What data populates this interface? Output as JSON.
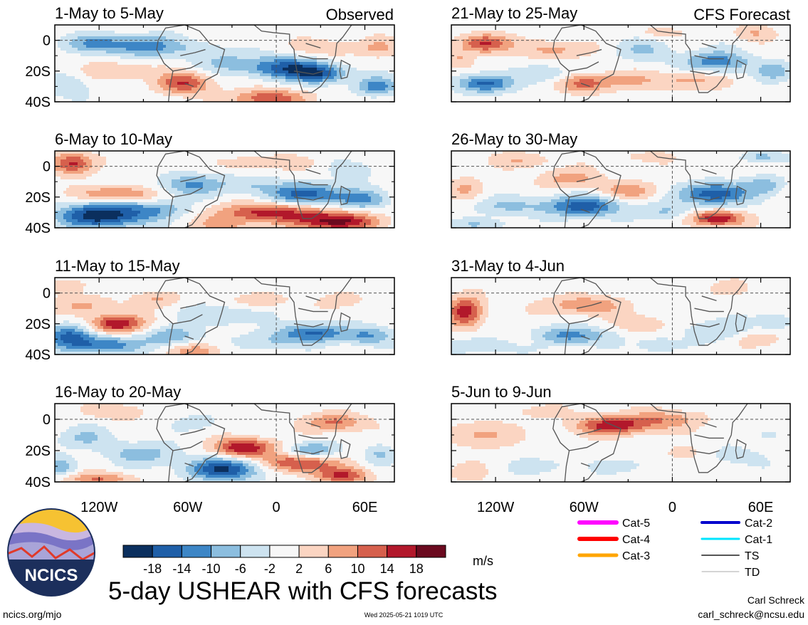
{
  "colors": {
    "levels": [
      "#0b2f5e",
      "#1f5fa8",
      "#3d86c6",
      "#8cbedf",
      "#cde3f0",
      "#f7f7f7",
      "#fbd5c2",
      "#f1a27f",
      "#d6604d",
      "#b2182b",
      "#6b0a1f"
    ],
    "continent": "#555555",
    "dashed": "#555555"
  },
  "panels_left_label": "Observed",
  "panels_right_label": "CFS Forecast",
  "lat_ticks": [
    "0",
    "20S",
    "40S"
  ],
  "lon_ticks": [
    "120W",
    "60W",
    "0",
    "60E"
  ],
  "colorbar": {
    "labels": [
      "-18",
      "-14",
      "-10",
      "-6",
      "-2",
      "2",
      "6",
      "10",
      "14",
      "18"
    ],
    "units": "m/s"
  },
  "legend": [
    {
      "label": "Cat-5",
      "color": "#ff00ff",
      "width": 6
    },
    {
      "label": "Cat-4",
      "color": "#ff0000",
      "width": 6
    },
    {
      "label": "Cat-3",
      "color": "#ffa500",
      "width": 5
    },
    {
      "label": "Cat-2",
      "color": "#0000cd",
      "width": 4
    },
    {
      "label": "Cat-1",
      "color": "#00e5ff",
      "width": 3
    },
    {
      "label": "TS",
      "color": "#555555",
      "width": 2
    },
    {
      "label": "TD",
      "color": "#aaaaaa",
      "width": 1
    }
  ],
  "title": "5-day USHEAR with CFS forecasts",
  "logo_text": "NCICS",
  "footer": {
    "left": "ncics.org/mjo",
    "center": "Wed 2025-05-21 1019 UTC",
    "author": "Carl Schreck",
    "email": "carl_schreck@ncsu.edu"
  },
  "chart_data": [
    {
      "type": "heatmap",
      "title": "1-May to 5-May",
      "ylim": [
        -40,
        10
      ],
      "xlim": [
        -150,
        80
      ],
      "blobs": [
        [
          -122,
          -2,
          -10,
          24,
          6
        ],
        [
          -88,
          -4,
          -12,
          22,
          7
        ],
        [
          -35,
          -14,
          -6,
          24,
          7
        ],
        [
          6,
          -18,
          -16,
          26,
          7
        ],
        [
          30,
          -22,
          -14,
          18,
          6
        ],
        [
          68,
          -30,
          -12,
          14,
          6
        ],
        [
          -62,
          -28,
          14,
          18,
          7
        ],
        [
          -105,
          -20,
          6,
          24,
          6
        ],
        [
          -140,
          -30,
          -6,
          14,
          8
        ],
        [
          -5,
          -38,
          14,
          24,
          6
        ],
        [
          35,
          -5,
          6,
          20,
          6
        ],
        [
          70,
          -5,
          6,
          14,
          6
        ],
        [
          -50,
          -5,
          -4,
          16,
          5
        ]
      ]
    },
    {
      "type": "heatmap",
      "title": "6-May to 10-May",
      "ylim": [
        -40,
        10
      ],
      "xlim": [
        -150,
        80
      ],
      "blobs": [
        [
          -138,
          2,
          16,
          14,
          7
        ],
        [
          -108,
          -18,
          12,
          24,
          5
        ],
        [
          -118,
          -32,
          -22,
          28,
          8
        ],
        [
          -58,
          -12,
          -10,
          22,
          7
        ],
        [
          -80,
          -28,
          -8,
          22,
          6
        ],
        [
          -20,
          -12,
          -6,
          18,
          6
        ],
        [
          22,
          -18,
          -16,
          26,
          7
        ],
        [
          58,
          -22,
          -10,
          16,
          6
        ],
        [
          -5,
          -30,
          16,
          34,
          6
        ],
        [
          40,
          -36,
          20,
          26,
          6
        ],
        [
          52,
          -2,
          -6,
          14,
          6
        ],
        [
          -20,
          2,
          6,
          18,
          5
        ],
        [
          18,
          2,
          4,
          14,
          5
        ],
        [
          -35,
          -38,
          8,
          18,
          5
        ]
      ]
    },
    {
      "type": "heatmap",
      "title": "11-May to 15-May",
      "ylim": [
        -40,
        10
      ],
      "xlim": [
        -150,
        80
      ],
      "blobs": [
        [
          -108,
          -20,
          18,
          18,
          6
        ],
        [
          -128,
          -8,
          7,
          20,
          6
        ],
        [
          -140,
          -28,
          -14,
          16,
          8
        ],
        [
          -115,
          -34,
          -14,
          22,
          6
        ],
        [
          -70,
          -28,
          -10,
          18,
          6
        ],
        [
          -35,
          -14,
          -6,
          24,
          7
        ],
        [
          -5,
          -32,
          -6,
          18,
          6
        ],
        [
          25,
          -26,
          -14,
          24,
          6
        ],
        [
          62,
          -28,
          -10,
          16,
          6
        ],
        [
          -80,
          -4,
          6,
          16,
          5
        ],
        [
          -55,
          -38,
          8,
          18,
          5
        ],
        [
          -10,
          -5,
          6,
          18,
          5
        ],
        [
          45,
          -5,
          6,
          14,
          5
        ],
        [
          -145,
          5,
          6,
          14,
          5
        ]
      ]
    },
    {
      "type": "heatmap",
      "title": "16-May to 20-May",
      "ylim": [
        -40,
        10
      ],
      "xlim": [
        -150,
        80
      ],
      "blobs": [
        [
          -22,
          -18,
          18,
          20,
          6
        ],
        [
          15,
          -28,
          16,
          24,
          6
        ],
        [
          45,
          -36,
          14,
          18,
          5
        ],
        [
          -35,
          -32,
          -18,
          26,
          7
        ],
        [
          -90,
          -22,
          -8,
          24,
          7
        ],
        [
          -130,
          -12,
          -6,
          20,
          7
        ],
        [
          25,
          -20,
          -12,
          16,
          5
        ],
        [
          40,
          -2,
          12,
          18,
          6
        ],
        [
          -120,
          -38,
          10,
          24,
          4
        ],
        [
          -145,
          -30,
          -8,
          10,
          6
        ],
        [
          70,
          -22,
          -6,
          10,
          6
        ],
        [
          -50,
          -2,
          -4,
          16,
          6
        ],
        [
          -110,
          5,
          6,
          20,
          5
        ]
      ]
    },
    {
      "type": "heatmap",
      "title": "21-May to 25-May",
      "ylim": [
        -40,
        10
      ],
      "xlim": [
        -150,
        80
      ],
      "blobs": [
        [
          -128,
          -2,
          16,
          16,
          6
        ],
        [
          -80,
          -6,
          8,
          22,
          6
        ],
        [
          -128,
          -28,
          -16,
          18,
          6
        ],
        [
          -60,
          -28,
          12,
          16,
          6
        ],
        [
          -85,
          -22,
          -6,
          18,
          6
        ],
        [
          -20,
          -6,
          -6,
          20,
          7
        ],
        [
          30,
          -14,
          -12,
          24,
          7
        ],
        [
          70,
          -20,
          -8,
          12,
          6
        ],
        [
          10,
          -26,
          8,
          24,
          6
        ],
        [
          -35,
          -26,
          6,
          20,
          6
        ],
        [
          55,
          5,
          6,
          14,
          5
        ],
        [
          -10,
          5,
          4,
          16,
          4
        ],
        [
          -145,
          -12,
          6,
          10,
          6
        ]
      ]
    },
    {
      "type": "heatmap",
      "title": "26-May to 30-May",
      "ylim": [
        -40,
        10
      ],
      "xlim": [
        -150,
        80
      ],
      "blobs": [
        [
          -60,
          -26,
          -16,
          26,
          7
        ],
        [
          -110,
          -26,
          -6,
          26,
          6
        ],
        [
          28,
          -18,
          -18,
          22,
          7
        ],
        [
          62,
          -12,
          -8,
          14,
          6
        ],
        [
          30,
          -34,
          18,
          18,
          5
        ],
        [
          -30,
          -16,
          8,
          22,
          6
        ],
        [
          -70,
          -8,
          8,
          20,
          6
        ],
        [
          -140,
          -14,
          6,
          12,
          7
        ],
        [
          -130,
          -38,
          -6,
          20,
          4
        ],
        [
          -5,
          -30,
          -6,
          18,
          6
        ],
        [
          -20,
          6,
          4,
          18,
          4
        ],
        [
          60,
          6,
          -8,
          14,
          4
        ],
        [
          -100,
          4,
          6,
          20,
          5
        ]
      ]
    },
    {
      "type": "heatmap",
      "title": "31-May to 4-Jun",
      "ylim": [
        -40,
        10
      ],
      "xlim": [
        -150,
        80
      ],
      "blobs": [
        [
          -140,
          -12,
          16,
          12,
          10
        ],
        [
          -60,
          -8,
          10,
          26,
          6
        ],
        [
          -70,
          -28,
          -12,
          26,
          6
        ],
        [
          -125,
          -34,
          -6,
          22,
          6
        ],
        [
          -20,
          -20,
          6,
          18,
          6
        ],
        [
          30,
          -24,
          -6,
          22,
          7
        ],
        [
          70,
          -18,
          -6,
          12,
          6
        ],
        [
          60,
          -30,
          6,
          14,
          5
        ],
        [
          -10,
          -34,
          -6,
          14,
          5
        ],
        [
          35,
          3,
          4,
          14,
          5
        ],
        [
          -100,
          -30,
          4,
          16,
          5
        ]
      ]
    },
    {
      "type": "heatmap",
      "title": "5-Jun to 9-Jun",
      "ylim": [
        -40,
        10
      ],
      "xlim": [
        -150,
        80
      ],
      "blobs": [
        [
          -40,
          -4,
          16,
          26,
          6
        ],
        [
          -5,
          0,
          8,
          26,
          6
        ],
        [
          -130,
          -10,
          8,
          20,
          8
        ],
        [
          40,
          -24,
          -4,
          22,
          7
        ],
        [
          -85,
          -30,
          -4,
          22,
          6
        ],
        [
          -140,
          -34,
          4,
          14,
          6
        ],
        [
          10,
          -22,
          4,
          16,
          5
        ],
        [
          -90,
          5,
          4,
          20,
          4
        ],
        [
          65,
          -10,
          -4,
          12,
          6
        ],
        [
          -30,
          -30,
          -4,
          18,
          5
        ]
      ]
    }
  ]
}
